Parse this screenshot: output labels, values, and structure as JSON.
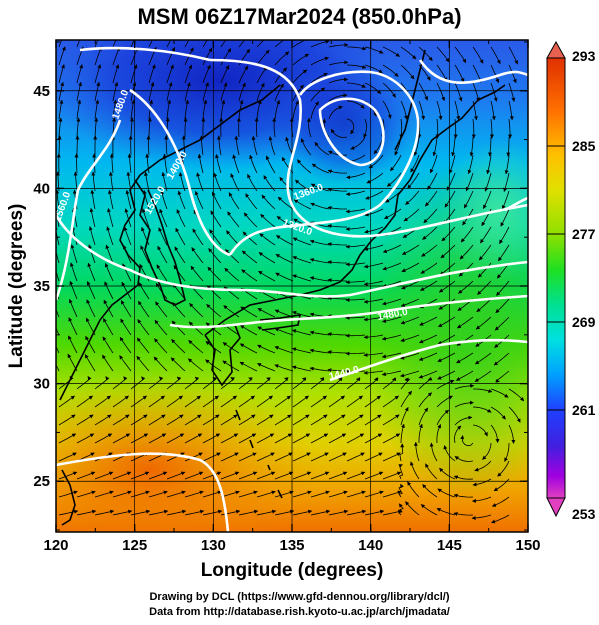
{
  "title": "MSM 06Z17Mar2024 (850.0hPa)",
  "credits": {
    "line1": "Drawing by DCL (https://www.gfd-dennou.org/library/dcl/)",
    "line2": "Data from http://database.rish.kyoto-u.ac.jp/arch/jmadata/"
  },
  "chart_data": {
    "type": "heatmap",
    "title": "MSM 06Z17Mar2024 (850.0hPa)",
    "xlabel": "Longitude (degrees)",
    "ylabel": "Latitude  (degrees)",
    "xlim": [
      120,
      150
    ],
    "ylim": [
      22.4,
      47.6
    ],
    "xticks": [
      120,
      125,
      130,
      135,
      140,
      145,
      150
    ],
    "yticks": [
      25,
      30,
      35,
      40,
      45
    ],
    "colorbar": {
      "min": 253,
      "max": 293,
      "labels": [
        293,
        285,
        277,
        269,
        261,
        253
      ],
      "colors": [
        "#ff40a0",
        "#b000e0",
        "#4040ff",
        "#1060ff",
        "#00c0ff",
        "#00e0d0",
        "#00e070",
        "#40e000",
        "#a0e000",
        "#e0e000",
        "#ffb000",
        "#ff6000",
        "#e03000"
      ]
    },
    "contour_labels": [
      "1560.0",
      "1480.0",
      "1520.0",
      "1400.0",
      "1360.0",
      "1320.0",
      "1480.0",
      "1440.0"
    ],
    "colors": {
      "contour": "#ffffff",
      "streamline": "#000000",
      "coast": "#000000"
    }
  }
}
